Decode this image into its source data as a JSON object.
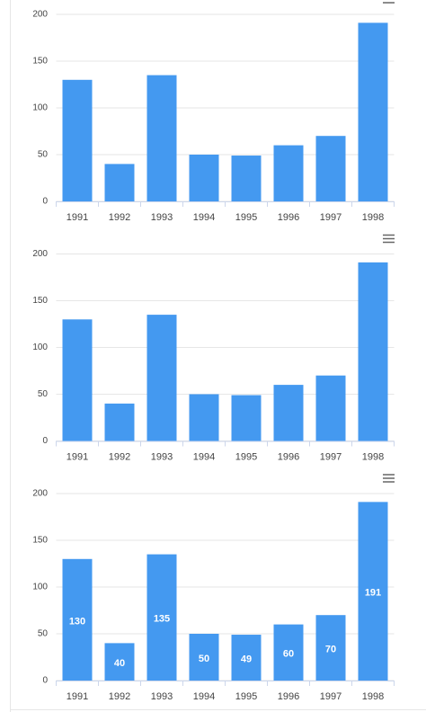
{
  "chart_data": [
    {
      "type": "bar",
      "categories": [
        "1991",
        "1992",
        "1993",
        "1994",
        "1995",
        "1996",
        "1997",
        "1998"
      ],
      "values": [
        130,
        40,
        135,
        50,
        49,
        60,
        70,
        191
      ],
      "color": "#4499f0",
      "ylim": [
        0,
        200
      ],
      "yticks": [
        0,
        50,
        100,
        150,
        200
      ],
      "grid": true,
      "data_labels": false
    },
    {
      "type": "bar",
      "categories": [
        "1991",
        "1992",
        "1993",
        "1994",
        "1995",
        "1996",
        "1997",
        "1998"
      ],
      "values": [
        130,
        40,
        135,
        50,
        49,
        60,
        70,
        191
      ],
      "color": "#4499f0",
      "ylim": [
        0,
        200
      ],
      "yticks": [
        0,
        50,
        100,
        150,
        200
      ],
      "grid": true,
      "data_labels": false
    },
    {
      "type": "bar",
      "categories": [
        "1991",
        "1992",
        "1993",
        "1994",
        "1995",
        "1996",
        "1997",
        "1998"
      ],
      "values": [
        130,
        40,
        135,
        50,
        49,
        60,
        70,
        191
      ],
      "color": "#4499f0",
      "ylim": [
        0,
        200
      ],
      "yticks": [
        0,
        50,
        100,
        150,
        200
      ],
      "grid": true,
      "data_labels": true
    }
  ]
}
